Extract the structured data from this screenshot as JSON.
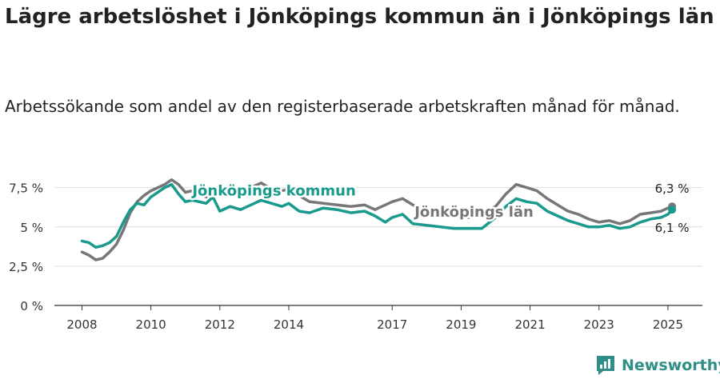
{
  "title": "Lägre arbetslöshet i Jönköpings kommun än i Jönköpings län",
  "subtitle": "Arbetssökande som andel av den registerbaserade arbetskraften månad för månad.",
  "brand": {
    "name": "Newsworthy",
    "icon": "newsworthy-logo-icon",
    "color": "#2f8f86"
  },
  "chart_data": {
    "type": "line",
    "ylim": [
      0,
      8.5
    ],
    "xlim": [
      2007.2,
      2026.0
    ],
    "y_ticks": [
      {
        "value": 0,
        "label": "0 %"
      },
      {
        "value": 2.5,
        "label": "2,5 %"
      },
      {
        "value": 5,
        "label": "5 %"
      },
      {
        "value": 7.5,
        "label": "7,5 %"
      }
    ],
    "x_ticks": [
      {
        "value": 2008,
        "label": "2008"
      },
      {
        "value": 2010,
        "label": "2010"
      },
      {
        "value": 2012,
        "label": "2012"
      },
      {
        "value": 2014,
        "label": "2014"
      },
      {
        "value": 2017,
        "label": "2017"
      },
      {
        "value": 2019,
        "label": "2019"
      },
      {
        "value": 2021,
        "label": "2021"
      },
      {
        "value": 2023,
        "label": "2023"
      },
      {
        "value": 2025,
        "label": "2025"
      }
    ],
    "grid": true,
    "series": [
      {
        "name": "Jönköpings län",
        "color": "#77777a",
        "end_label": "6,3 %",
        "points": [
          [
            2008.0,
            3.4
          ],
          [
            2008.2,
            3.2
          ],
          [
            2008.4,
            2.9
          ],
          [
            2008.6,
            3.0
          ],
          [
            2008.8,
            3.4
          ],
          [
            2009.0,
            3.9
          ],
          [
            2009.2,
            4.8
          ],
          [
            2009.4,
            5.9
          ],
          [
            2009.6,
            6.6
          ],
          [
            2009.8,
            7.0
          ],
          [
            2010.0,
            7.3
          ],
          [
            2010.2,
            7.5
          ],
          [
            2010.4,
            7.7
          ],
          [
            2010.6,
            8.0
          ],
          [
            2010.8,
            7.7
          ],
          [
            2011.0,
            7.2
          ],
          [
            2011.2,
            7.3
          ],
          [
            2011.4,
            7.1
          ],
          [
            2011.6,
            6.9
          ],
          [
            2011.8,
            7.2
          ],
          [
            2012.0,
            7.1
          ],
          [
            2012.3,
            7.0
          ],
          [
            2012.6,
            7.3
          ],
          [
            2012.9,
            7.5
          ],
          [
            2013.2,
            7.8
          ],
          [
            2013.5,
            7.4
          ],
          [
            2013.8,
            7.3
          ],
          [
            2014.0,
            7.4
          ],
          [
            2014.3,
            7.0
          ],
          [
            2014.6,
            6.6
          ],
          [
            2015.0,
            6.5
          ],
          [
            2015.4,
            6.4
          ],
          [
            2015.8,
            6.3
          ],
          [
            2016.2,
            6.4
          ],
          [
            2016.5,
            6.1
          ],
          [
            2016.8,
            6.4
          ],
          [
            2017.0,
            6.6
          ],
          [
            2017.3,
            6.8
          ],
          [
            2017.6,
            6.4
          ],
          [
            2018.0,
            6.0
          ],
          [
            2018.4,
            5.8
          ],
          [
            2018.8,
            5.7
          ],
          [
            2019.2,
            5.6
          ],
          [
            2019.6,
            5.8
          ],
          [
            2020.0,
            6.3
          ],
          [
            2020.3,
            7.1
          ],
          [
            2020.6,
            7.7
          ],
          [
            2020.9,
            7.5
          ],
          [
            2021.2,
            7.3
          ],
          [
            2021.5,
            6.8
          ],
          [
            2021.8,
            6.4
          ],
          [
            2022.1,
            6.0
          ],
          [
            2022.4,
            5.8
          ],
          [
            2022.7,
            5.5
          ],
          [
            2023.0,
            5.3
          ],
          [
            2023.3,
            5.4
          ],
          [
            2023.6,
            5.2
          ],
          [
            2023.9,
            5.4
          ],
          [
            2024.2,
            5.8
          ],
          [
            2024.5,
            5.9
          ],
          [
            2024.8,
            6.0
          ],
          [
            2025.0,
            6.2
          ],
          [
            2025.12,
            6.3
          ]
        ]
      },
      {
        "name": "Jönköpings kommun",
        "color": "#1a9a8c",
        "end_label": "6,1 %",
        "points": [
          [
            2008.0,
            4.1
          ],
          [
            2008.2,
            4.0
          ],
          [
            2008.4,
            3.7
          ],
          [
            2008.6,
            3.8
          ],
          [
            2008.8,
            4.0
          ],
          [
            2009.0,
            4.4
          ],
          [
            2009.2,
            5.3
          ],
          [
            2009.4,
            6.1
          ],
          [
            2009.6,
            6.5
          ],
          [
            2009.8,
            6.4
          ],
          [
            2010.0,
            6.9
          ],
          [
            2010.2,
            7.2
          ],
          [
            2010.4,
            7.5
          ],
          [
            2010.6,
            7.7
          ],
          [
            2010.8,
            7.1
          ],
          [
            2011.0,
            6.6
          ],
          [
            2011.2,
            6.7
          ],
          [
            2011.4,
            6.6
          ],
          [
            2011.6,
            6.5
          ],
          [
            2011.8,
            6.9
          ],
          [
            2012.0,
            6.0
          ],
          [
            2012.3,
            6.3
          ],
          [
            2012.6,
            6.1
          ],
          [
            2012.9,
            6.4
          ],
          [
            2013.2,
            6.7
          ],
          [
            2013.5,
            6.5
          ],
          [
            2013.8,
            6.3
          ],
          [
            2014.0,
            6.5
          ],
          [
            2014.3,
            6.0
          ],
          [
            2014.6,
            5.9
          ],
          [
            2015.0,
            6.2
          ],
          [
            2015.4,
            6.1
          ],
          [
            2015.8,
            5.9
          ],
          [
            2016.2,
            6.0
          ],
          [
            2016.5,
            5.7
          ],
          [
            2016.8,
            5.3
          ],
          [
            2017.0,
            5.6
          ],
          [
            2017.3,
            5.8
          ],
          [
            2017.6,
            5.2
          ],
          [
            2018.0,
            5.1
          ],
          [
            2018.4,
            5.0
          ],
          [
            2018.8,
            4.9
          ],
          [
            2019.2,
            4.9
          ],
          [
            2019.6,
            4.9
          ],
          [
            2020.0,
            5.6
          ],
          [
            2020.3,
            6.3
          ],
          [
            2020.6,
            6.8
          ],
          [
            2020.9,
            6.6
          ],
          [
            2021.2,
            6.5
          ],
          [
            2021.5,
            6.0
          ],
          [
            2021.8,
            5.7
          ],
          [
            2022.1,
            5.4
          ],
          [
            2022.4,
            5.2
          ],
          [
            2022.7,
            5.0
          ],
          [
            2023.0,
            5.0
          ],
          [
            2023.3,
            5.1
          ],
          [
            2023.6,
            4.9
          ],
          [
            2023.9,
            5.0
          ],
          [
            2024.2,
            5.3
          ],
          [
            2024.5,
            5.5
          ],
          [
            2024.8,
            5.6
          ],
          [
            2025.0,
            5.8
          ],
          [
            2025.12,
            6.1
          ]
        ]
      }
    ],
    "series_labels": [
      {
        "text": "Jönköpings kommun",
        "color": "#1a9a8c",
        "x": 2011.2,
        "y": 7.0
      },
      {
        "text": "Jönköpings län",
        "color": "#77777a",
        "x": 2017.65,
        "y": 5.65
      }
    ]
  }
}
